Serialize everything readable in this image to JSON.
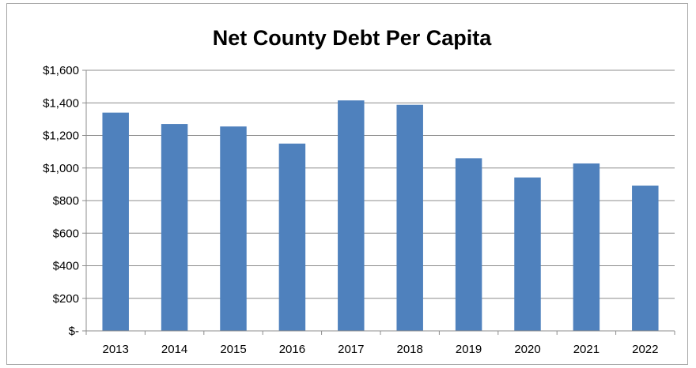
{
  "chart_data": {
    "type": "bar",
    "title": "Net County Debt Per Capita",
    "xlabel": "",
    "ylabel": "",
    "categories": [
      "2013",
      "2014",
      "2015",
      "2016",
      "2017",
      "2018",
      "2019",
      "2020",
      "2021",
      "2022"
    ],
    "values": [
      1340,
      1270,
      1255,
      1150,
      1415,
      1388,
      1060,
      942,
      1028,
      892
    ],
    "ylim": [
      0,
      1600
    ],
    "yticks": [
      0,
      200,
      400,
      600,
      800,
      1000,
      1200,
      1400,
      1600
    ],
    "ytick_labels": [
      "$-",
      "$200",
      "$400",
      "$600",
      "$800",
      "$1,000",
      "$1,200",
      "$1,400",
      "$1,600"
    ],
    "grid": true,
    "legend": "none",
    "bar_color": "#4f81bd"
  }
}
